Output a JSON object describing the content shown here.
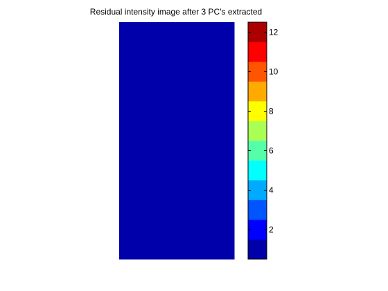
{
  "chart_data": {
    "type": "heatmap",
    "title": "Residual intensity image after 3 PC's extracted",
    "xlabel": "",
    "ylabel": "",
    "image": {
      "values": [
        [
          0.5
        ]
      ],
      "axes_visible": false
    },
    "colorbar": {
      "location": "right",
      "clim": [
        0.5,
        12.5
      ],
      "levels": [
        {
          "from": 0.5,
          "to": 1.5,
          "color": "#0000aa"
        },
        {
          "from": 1.5,
          "to": 2.5,
          "color": "#0000ff"
        },
        {
          "from": 2.5,
          "to": 3.5,
          "color": "#0055ff"
        },
        {
          "from": 3.5,
          "to": 4.5,
          "color": "#00aaff"
        },
        {
          "from": 4.5,
          "to": 5.5,
          "color": "#00ffff"
        },
        {
          "from": 5.5,
          "to": 6.5,
          "color": "#55ffaa"
        },
        {
          "from": 6.5,
          "to": 7.5,
          "color": "#aaff55"
        },
        {
          "from": 7.5,
          "to": 8.5,
          "color": "#ffff00"
        },
        {
          "from": 8.5,
          "to": 9.5,
          "color": "#ffaa00"
        },
        {
          "from": 9.5,
          "to": 10.5,
          "color": "#ff5500"
        },
        {
          "from": 10.5,
          "to": 11.5,
          "color": "#ff0000"
        },
        {
          "from": 11.5,
          "to": 12.5,
          "color": "#aa0000"
        }
      ],
      "ticks": [
        2,
        4,
        6,
        8,
        10,
        12
      ],
      "tick_labels": [
        "2",
        "4",
        "6",
        "8",
        "10",
        "12"
      ]
    },
    "grid": false
  }
}
